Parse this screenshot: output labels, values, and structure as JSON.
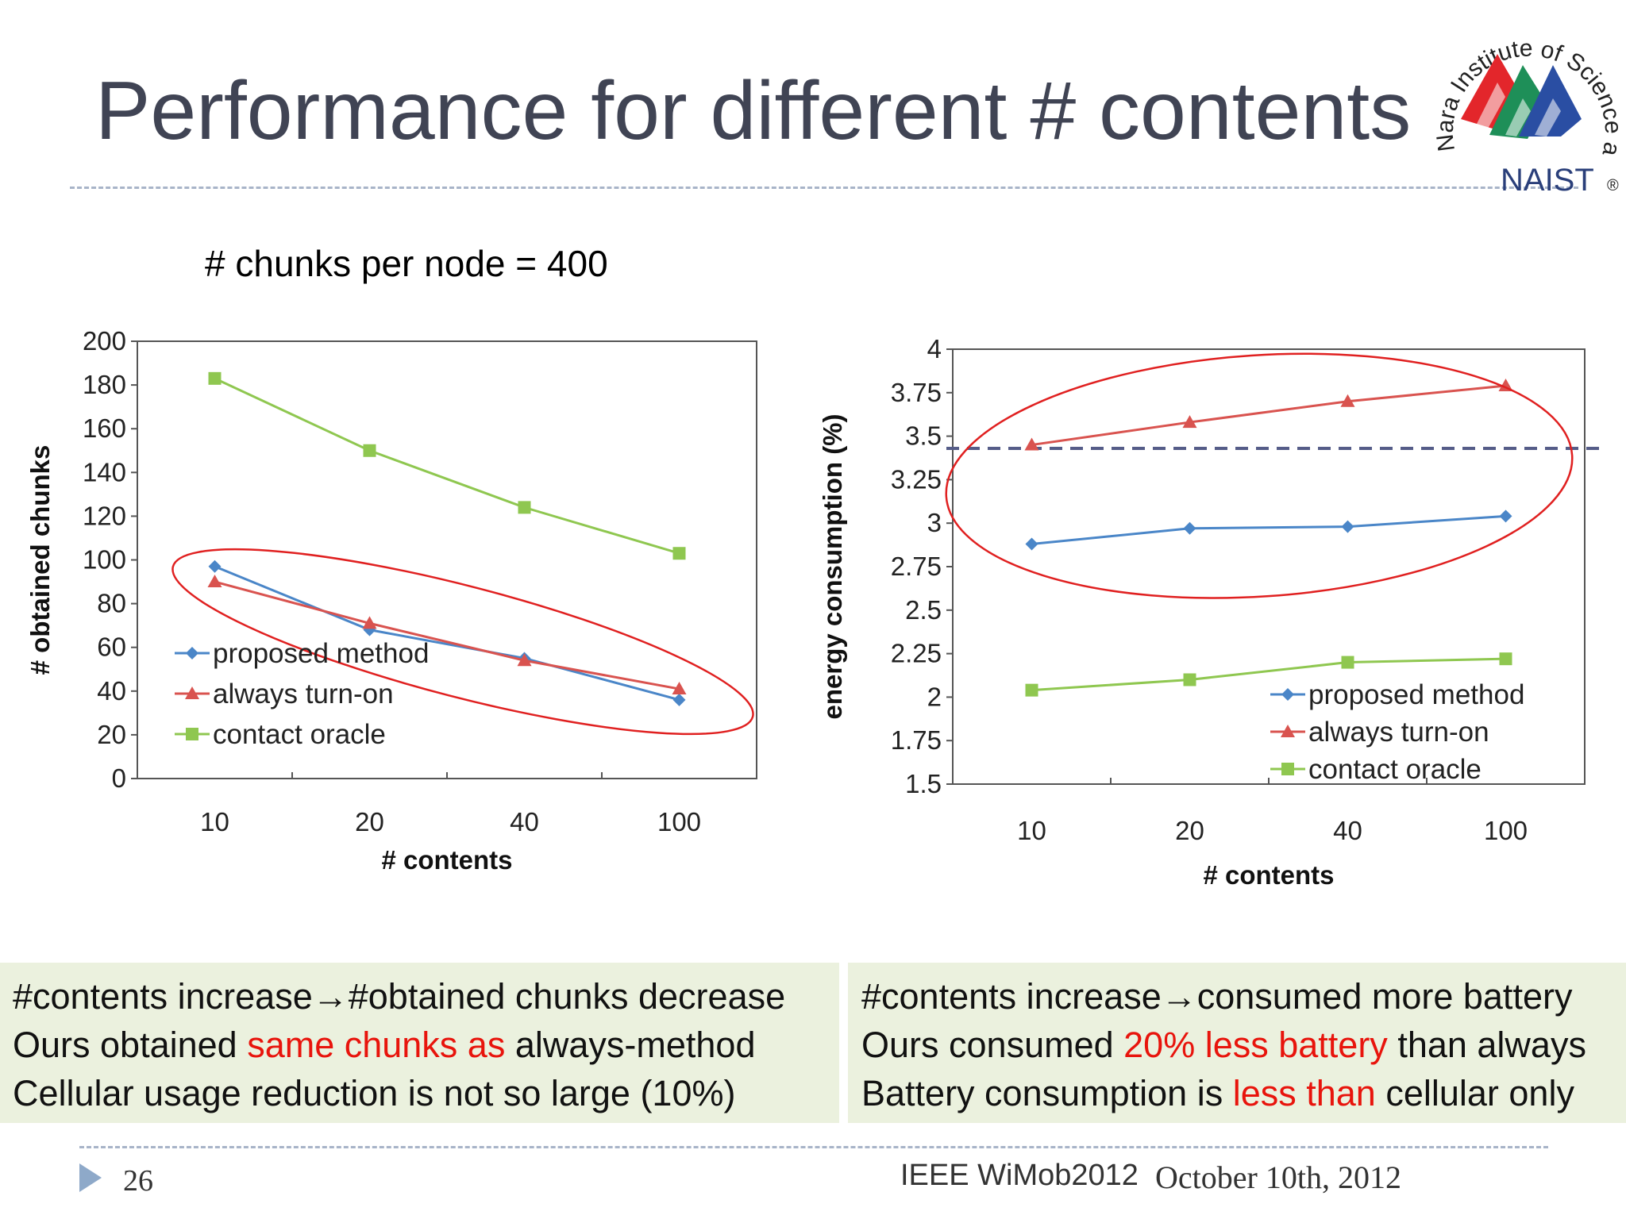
{
  "slide": {
    "title": "Performance for different # contents",
    "subtitle": "# chunks per node = 400",
    "page_number": "26",
    "conference": "IEEE WiMob2012",
    "date": "October 10th, 2012"
  },
  "logo": {
    "arc_text": "Nara Institute of Science and Technology",
    "name": "NAIST",
    "registered": "®"
  },
  "left_box": {
    "line1_a": "#contents increase",
    "line1_arrow": "→",
    "line1_b": "#obtained chunks decrease",
    "line2_a": "Ours obtained ",
    "line2_red": "same chunks as",
    "line2_b": " always-method",
    "line3": "Cellular usage reduction is not so large (10%)"
  },
  "right_box": {
    "line1_a": "#contents increase",
    "line1_arrow": "→",
    "line1_b": "consumed more battery",
    "line2_a": "Ours consumed ",
    "line2_red": "20% less battery",
    "line2_b": " than always",
    "line3_a": "Battery consumption is ",
    "line3_red": "less than",
    "line3_b": " cellular only"
  },
  "colors": {
    "proposed": "#4a86c8",
    "always": "#d9534f",
    "oracle": "#8fc750",
    "highlight_ellipse": "#e02020",
    "reference_line": "#555c88",
    "box_background": "#ebf1de",
    "emphasis": "#e8140c"
  },
  "chart_data": [
    {
      "type": "line",
      "categories": [
        "10",
        "20",
        "40",
        "100"
      ],
      "xlabel": "# contents",
      "ylabel": "# obtained chunks",
      "ylim": [
        0,
        200
      ],
      "yticks": [
        "0",
        "20",
        "40",
        "60",
        "80",
        "100",
        "120",
        "140",
        "160",
        "180",
        "200"
      ],
      "legend_position": "bottom-left",
      "series": [
        {
          "name": "proposed method",
          "marker": "diamond",
          "values": [
            97,
            68,
            55,
            36
          ]
        },
        {
          "name": "always turn-on",
          "marker": "triangle",
          "values": [
            90,
            71,
            54,
            41
          ]
        },
        {
          "name": "contact oracle",
          "marker": "square",
          "values": [
            183,
            150,
            124,
            103
          ]
        }
      ]
    },
    {
      "type": "line",
      "categories": [
        "10",
        "20",
        "40",
        "100"
      ],
      "xlabel": "# contents",
      "ylabel": "energy consumption (%)",
      "ylim": [
        1.5,
        4
      ],
      "yticks": [
        "1.5",
        "1.75",
        "2",
        "2.25",
        "2.5",
        "2.75",
        "3",
        "3.25",
        "3.5",
        "3.75",
        "4"
      ],
      "legend_position": "bottom-right",
      "reference_line": 3.43,
      "series": [
        {
          "name": "proposed method",
          "marker": "diamond",
          "values": [
            2.88,
            2.97,
            2.98,
            3.04
          ]
        },
        {
          "name": "always turn-on",
          "marker": "triangle",
          "values": [
            3.45,
            3.58,
            3.7,
            3.79
          ]
        },
        {
          "name": "contact oracle",
          "marker": "square",
          "values": [
            2.04,
            2.1,
            2.2,
            2.22
          ]
        }
      ]
    }
  ]
}
